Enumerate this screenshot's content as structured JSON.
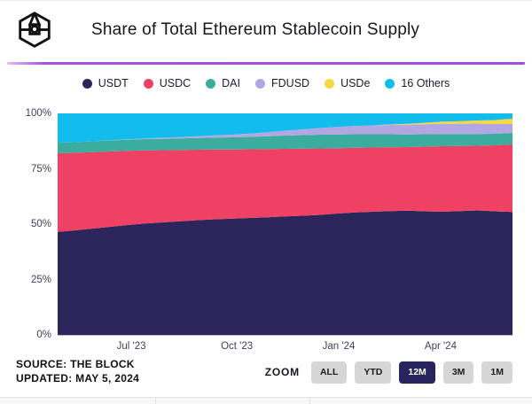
{
  "header": {
    "title": "Share of Total Ethereum Stablecoin Supply",
    "logo": "the-block-cube-logo"
  },
  "footer": {
    "source": "SOURCE: THE BLOCK",
    "updated": "UPDATED: MAY 5, 2024"
  },
  "zoom": {
    "label": "ZOOM",
    "options": [
      {
        "label": "ALL",
        "active": false
      },
      {
        "label": "YTD",
        "active": false
      },
      {
        "label": "12M",
        "active": true
      },
      {
        "label": "3M",
        "active": false
      },
      {
        "label": "1M",
        "active": false
      }
    ]
  },
  "brand": {
    "divider_color": "#a14ddd",
    "active_button_color": "#29245d"
  },
  "chart_data": {
    "type": "area",
    "stacked": true,
    "title": "Share of Total Ethereum Stablecoin Supply",
    "unit": "%",
    "ylim": [
      0,
      100
    ],
    "grid": false,
    "legend_position": "top",
    "x_range": [
      "May '23",
      "May '24"
    ],
    "y_ticks": [
      "100%",
      "75%",
      "50%",
      "25%",
      "0%"
    ],
    "x_ticks": [
      {
        "label": "Jul '23",
        "pos": 0.162
      },
      {
        "label": "Oct '23",
        "pos": 0.394
      },
      {
        "label": "Jan '24",
        "pos": 0.618
      },
      {
        "label": "Apr '24",
        "pos": 0.842
      }
    ],
    "series": [
      {
        "name": "USDT",
        "color": "#2b255c",
        "values": [
          46.5,
          47.2,
          48.0,
          48.8,
          49.6,
          50.3,
          50.8,
          51.3,
          51.8,
          52.2,
          52.5,
          52.8,
          53.1,
          53.5,
          53.8,
          54.2,
          54.8,
          55.3,
          55.6,
          55.9,
          56.1,
          55.8,
          55.6,
          55.9,
          56.2,
          55.8,
          55.5
        ]
      },
      {
        "name": "USDC",
        "color": "#ef4164",
        "values": [
          35.5,
          35.0,
          34.5,
          34.0,
          33.5,
          33.0,
          32.6,
          32.2,
          31.8,
          31.5,
          31.2,
          31.0,
          30.8,
          30.5,
          30.3,
          30.0,
          29.5,
          29.2,
          29.0,
          28.8,
          28.7,
          29.2,
          29.6,
          29.4,
          29.2,
          29.8,
          30.5
        ]
      },
      {
        "name": "DAI",
        "color": "#3aad9f",
        "values": [
          4.8,
          4.8,
          4.9,
          5.0,
          5.0,
          5.1,
          5.1,
          5.2,
          5.3,
          5.4,
          5.5,
          5.6,
          5.8,
          6.0,
          6.1,
          6.2,
          6.2,
          6.1,
          6.0,
          5.9,
          5.7,
          5.6,
          5.5,
          5.4,
          5.3,
          5.2,
          5.2
        ]
      },
      {
        "name": "FDUSD",
        "color": "#b2a7e3",
        "values": [
          0,
          0,
          0,
          0.1,
          0.2,
          0.3,
          0.5,
          0.6,
          0.8,
          1.0,
          1.2,
          1.5,
          1.8,
          2.2,
          2.6,
          3.0,
          3.4,
          3.7,
          4.0,
          4.2,
          4.4,
          4.5,
          4.6,
          4.6,
          4.7,
          4.4,
          4.0
        ]
      },
      {
        "name": "USDe",
        "color": "#f7d843",
        "values": [
          0,
          0,
          0,
          0,
          0,
          0,
          0,
          0,
          0,
          0,
          0,
          0,
          0,
          0,
          0,
          0,
          0,
          0,
          0,
          0.2,
          0.4,
          0.7,
          1.0,
          1.2,
          1.4,
          1.8,
          2.4
        ]
      },
      {
        "name": "16 Others",
        "color": "#12bdee",
        "values": [
          13.2,
          13.0,
          12.6,
          12.1,
          11.7,
          11.3,
          11.0,
          10.7,
          10.3,
          9.9,
          9.6,
          9.1,
          8.5,
          7.8,
          7.2,
          6.6,
          6.1,
          5.7,
          5.4,
          5.0,
          4.7,
          4.2,
          3.7,
          3.5,
          3.2,
          3.0,
          2.4
        ]
      }
    ]
  }
}
